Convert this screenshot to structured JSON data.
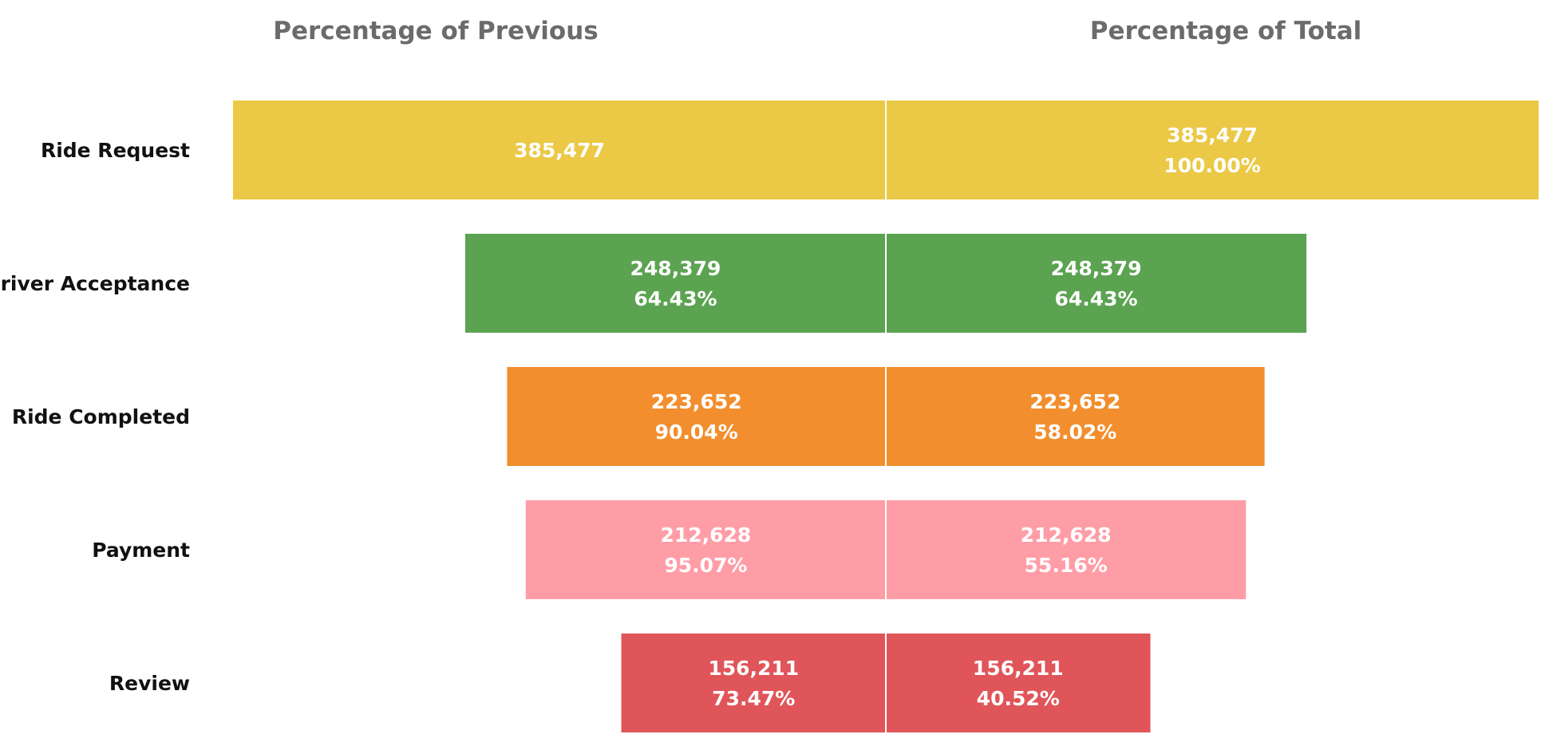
{
  "chart_data": {
    "type": "bar",
    "headers": {
      "left": "Percentage of Previous",
      "right": "Percentage of Total"
    },
    "categories": [
      "Ride Request",
      "Driver Acceptance",
      "Ride Completed",
      "Payment",
      "Review"
    ],
    "values": [
      385477,
      248379,
      223652,
      212628,
      156211
    ],
    "series": [
      {
        "name": "Percentage of Previous",
        "value_labels": [
          "385,477",
          "248,379",
          "223,652",
          "212,628",
          "156,211"
        ],
        "percent_labels": [
          "",
          "64.43%",
          "90.04%",
          "95.07%",
          "73.47%"
        ],
        "percent_values": [
          null,
          64.43,
          90.04,
          95.07,
          73.47
        ]
      },
      {
        "name": "Percentage of Total",
        "value_labels": [
          "385,477",
          "248,379",
          "223,652",
          "212,628",
          "156,211"
        ],
        "percent_labels": [
          "100.00%",
          "64.43%",
          "58.02%",
          "55.16%",
          "40.52%"
        ],
        "percent_values": [
          100.0,
          64.43,
          58.02,
          55.16,
          40.52
        ]
      }
    ],
    "colors": [
      "#EBC946",
      "#5BA351",
      "#F28E2D",
      "#FF9DA7",
      "#E05559"
    ],
    "xlim": [
      0,
      385477
    ],
    "grid": false,
    "legend": "none"
  }
}
